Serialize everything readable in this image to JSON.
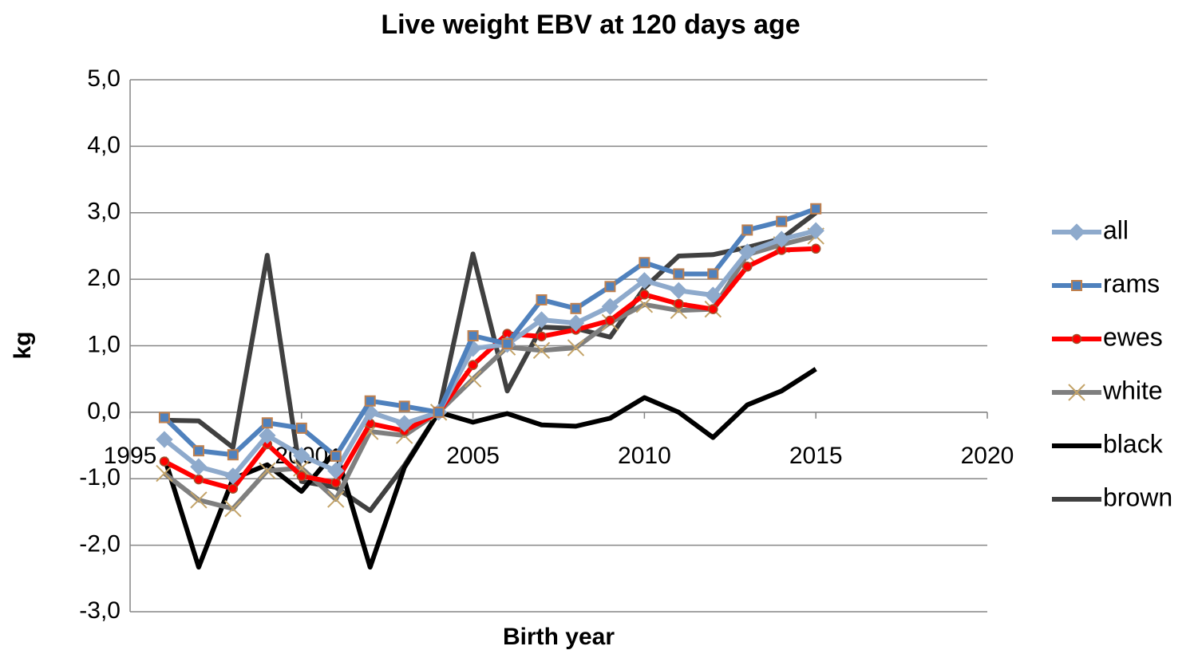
{
  "chart_data": {
    "type": "line",
    "title": "Live weight EBV at 120 days age",
    "xlabel": "Birth year",
    "ylabel": "kg",
    "x": [
      1996,
      1997,
      1998,
      1999,
      2000,
      2001,
      2002,
      2003,
      2004,
      2005,
      2006,
      2007,
      2008,
      2009,
      2010,
      2011,
      2012,
      2013,
      2014,
      2015
    ],
    "series": [
      {
        "name": "all",
        "color": "#8eaacc",
        "marker": "diamond",
        "marker_edge": "#8eaacc",
        "values": [
          -0.41,
          -0.82,
          -0.96,
          -0.35,
          -0.65,
          -0.88,
          0.0,
          -0.17,
          0.0,
          0.96,
          1.02,
          1.39,
          1.34,
          1.59,
          1.98,
          1.83,
          1.76,
          2.41,
          2.6,
          2.73
        ]
      },
      {
        "name": "rams",
        "color": "#4f81bd",
        "marker": "square",
        "marker_edge": "#c0804d",
        "values": [
          -0.08,
          -0.58,
          -0.64,
          -0.16,
          -0.24,
          -0.66,
          0.17,
          0.09,
          0.0,
          1.15,
          1.03,
          1.69,
          1.56,
          1.89,
          2.25,
          2.08,
          2.08,
          2.74,
          2.87,
          3.06
        ]
      },
      {
        "name": "ewes",
        "color": "#ff0000",
        "marker": "circle",
        "marker_edge": "#a0522d",
        "values": [
          -0.74,
          -1.01,
          -1.15,
          -0.48,
          -0.96,
          -1.06,
          -0.17,
          -0.28,
          0.0,
          0.71,
          1.18,
          1.14,
          1.24,
          1.38,
          1.77,
          1.63,
          1.55,
          2.19,
          2.44,
          2.46
        ]
      },
      {
        "name": "white",
        "color": "#7f7f7f",
        "marker": "x",
        "marker_edge": "#c4a469",
        "values": [
          -0.92,
          -1.32,
          -1.45,
          -0.88,
          -0.84,
          -1.31,
          -0.29,
          -0.35,
          0.0,
          0.5,
          0.98,
          0.93,
          0.97,
          1.35,
          1.62,
          1.53,
          1.55,
          2.37,
          2.52,
          2.65
        ]
      },
      {
        "name": "black",
        "color": "#000000",
        "marker": "none",
        "values": [
          -0.68,
          -2.33,
          -1.0,
          -0.79,
          -1.19,
          -0.58,
          -2.33,
          -0.83,
          0.0,
          -0.15,
          -0.02,
          -0.19,
          -0.21,
          -0.09,
          0.22,
          0.0,
          -0.38,
          0.11,
          0.32,
          0.65
        ]
      },
      {
        "name": "brown",
        "color": "#404040",
        "marker": "none",
        "values": [
          -0.12,
          -0.13,
          -0.53,
          2.36,
          -1.04,
          -1.13,
          -1.48,
          -0.8,
          0.0,
          2.38,
          0.32,
          1.28,
          1.26,
          1.13,
          1.87,
          2.35,
          2.37,
          2.48,
          2.61,
          3.0
        ]
      }
    ],
    "xlim": [
      1995,
      2020
    ],
    "xticks": [
      1995,
      2000,
      2005,
      2010,
      2015,
      2020
    ],
    "ylim": [
      -3,
      5
    ],
    "yticks": [
      {
        "value": -3,
        "label": "-3,0"
      },
      {
        "value": -2,
        "label": "-2,0"
      },
      {
        "value": -1,
        "label": "-1,0"
      },
      {
        "value": 0,
        "label": "0,0"
      },
      {
        "value": 1,
        "label": "1,0"
      },
      {
        "value": 2,
        "label": "2,0"
      },
      {
        "value": 3,
        "label": "3,0"
      },
      {
        "value": 4,
        "label": "4,0"
      },
      {
        "value": 5,
        "label": "5,0"
      }
    ],
    "grid": true,
    "legend": "right"
  }
}
